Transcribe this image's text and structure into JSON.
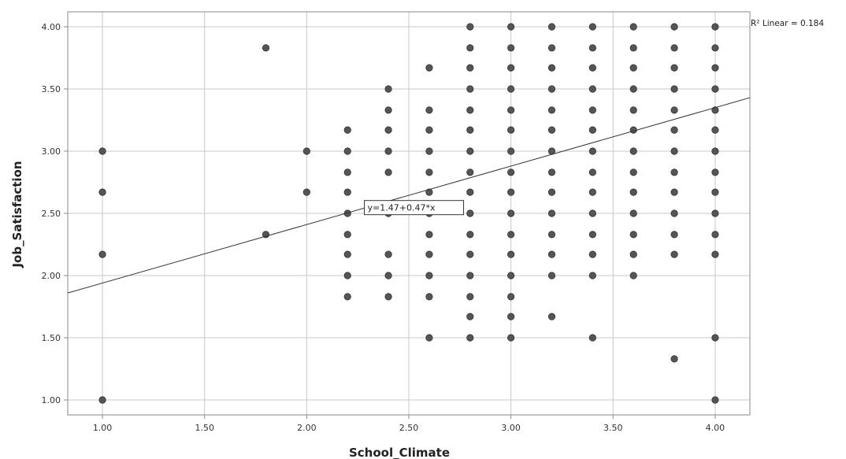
{
  "chart_data": {
    "type": "scatter",
    "title": "",
    "xlabel": "School_Climate",
    "ylabel": "Job_Satisfaction",
    "xlim": [
      0.83,
      4.17
    ],
    "ylim": [
      0.88,
      4.12
    ],
    "x_ticks": [
      "1.00",
      "1.50",
      "2.00",
      "2.50",
      "3.00",
      "3.50",
      "4.00"
    ],
    "y_ticks": [
      "1.00",
      "1.50",
      "2.00",
      "2.50",
      "3.00",
      "3.50",
      "4.00"
    ],
    "grid": true,
    "point_color": "#555555",
    "fit_line": {
      "intercept": 1.47,
      "slope": 0.47,
      "equation_label": "y=1.47+0.47*x",
      "r2_label": "R² Linear = 0.184"
    },
    "points": [
      [
        1.0,
        3.0
      ],
      [
        1.0,
        2.67
      ],
      [
        1.0,
        2.17
      ],
      [
        1.0,
        1.0
      ],
      [
        1.8,
        3.83
      ],
      [
        1.8,
        2.33
      ],
      [
        2.0,
        3.0
      ],
      [
        2.0,
        2.67
      ],
      [
        2.2,
        3.17
      ],
      [
        2.2,
        3.0
      ],
      [
        2.2,
        2.83
      ],
      [
        2.2,
        2.67
      ],
      [
        2.2,
        2.5
      ],
      [
        2.2,
        2.33
      ],
      [
        2.2,
        2.17
      ],
      [
        2.2,
        2.0
      ],
      [
        2.2,
        1.83
      ],
      [
        2.4,
        3.5
      ],
      [
        2.4,
        3.33
      ],
      [
        2.4,
        3.17
      ],
      [
        2.4,
        3.0
      ],
      [
        2.4,
        2.83
      ],
      [
        2.4,
        2.5
      ],
      [
        2.4,
        2.17
      ],
      [
        2.4,
        2.0
      ],
      [
        2.4,
        1.83
      ],
      [
        2.6,
        3.67
      ],
      [
        2.6,
        3.33
      ],
      [
        2.6,
        3.17
      ],
      [
        2.6,
        3.0
      ],
      [
        2.6,
        2.83
      ],
      [
        2.6,
        2.67
      ],
      [
        2.6,
        2.5
      ],
      [
        2.6,
        2.33
      ],
      [
        2.6,
        2.17
      ],
      [
        2.6,
        2.0
      ],
      [
        2.6,
        1.83
      ],
      [
        2.6,
        1.5
      ],
      [
        2.8,
        4.0
      ],
      [
        2.8,
        3.83
      ],
      [
        2.8,
        3.67
      ],
      [
        2.8,
        3.5
      ],
      [
        2.8,
        3.33
      ],
      [
        2.8,
        3.17
      ],
      [
        2.8,
        3.0
      ],
      [
        2.8,
        2.83
      ],
      [
        2.8,
        2.67
      ],
      [
        2.8,
        2.5
      ],
      [
        2.8,
        2.33
      ],
      [
        2.8,
        2.17
      ],
      [
        2.8,
        2.0
      ],
      [
        2.8,
        1.83
      ],
      [
        2.8,
        1.67
      ],
      [
        2.8,
        1.5
      ],
      [
        3.0,
        4.0
      ],
      [
        3.0,
        3.83
      ],
      [
        3.0,
        3.67
      ],
      [
        3.0,
        3.5
      ],
      [
        3.0,
        3.33
      ],
      [
        3.0,
        3.17
      ],
      [
        3.0,
        3.0
      ],
      [
        3.0,
        2.83
      ],
      [
        3.0,
        2.67
      ],
      [
        3.0,
        2.5
      ],
      [
        3.0,
        2.33
      ],
      [
        3.0,
        2.17
      ],
      [
        3.0,
        2.0
      ],
      [
        3.0,
        1.83
      ],
      [
        3.0,
        1.67
      ],
      [
        3.0,
        1.5
      ],
      [
        3.2,
        4.0
      ],
      [
        3.2,
        3.83
      ],
      [
        3.2,
        3.67
      ],
      [
        3.2,
        3.5
      ],
      [
        3.2,
        3.33
      ],
      [
        3.2,
        3.17
      ],
      [
        3.2,
        3.0
      ],
      [
        3.2,
        2.83
      ],
      [
        3.2,
        2.67
      ],
      [
        3.2,
        2.5
      ],
      [
        3.2,
        2.33
      ],
      [
        3.2,
        2.17
      ],
      [
        3.2,
        2.0
      ],
      [
        3.2,
        1.67
      ],
      [
        3.4,
        4.0
      ],
      [
        3.4,
        3.83
      ],
      [
        3.4,
        3.67
      ],
      [
        3.4,
        3.5
      ],
      [
        3.4,
        3.33
      ],
      [
        3.4,
        3.17
      ],
      [
        3.4,
        3.0
      ],
      [
        3.4,
        2.83
      ],
      [
        3.4,
        2.67
      ],
      [
        3.4,
        2.5
      ],
      [
        3.4,
        2.33
      ],
      [
        3.4,
        2.17
      ],
      [
        3.4,
        2.0
      ],
      [
        3.4,
        1.5
      ],
      [
        3.6,
        4.0
      ],
      [
        3.6,
        3.83
      ],
      [
        3.6,
        3.67
      ],
      [
        3.6,
        3.5
      ],
      [
        3.6,
        3.33
      ],
      [
        3.6,
        3.17
      ],
      [
        3.6,
        3.0
      ],
      [
        3.6,
        2.83
      ],
      [
        3.6,
        2.67
      ],
      [
        3.6,
        2.5
      ],
      [
        3.6,
        2.33
      ],
      [
        3.6,
        2.17
      ],
      [
        3.6,
        2.0
      ],
      [
        3.8,
        4.0
      ],
      [
        3.8,
        3.83
      ],
      [
        3.8,
        3.67
      ],
      [
        3.8,
        3.5
      ],
      [
        3.8,
        3.33
      ],
      [
        3.8,
        3.17
      ],
      [
        3.8,
        3.0
      ],
      [
        3.8,
        2.83
      ],
      [
        3.8,
        2.67
      ],
      [
        3.8,
        2.5
      ],
      [
        3.8,
        2.33
      ],
      [
        3.8,
        2.17
      ],
      [
        3.8,
        1.33
      ],
      [
        4.0,
        4.0
      ],
      [
        4.0,
        3.83
      ],
      [
        4.0,
        3.67
      ],
      [
        4.0,
        3.5
      ],
      [
        4.0,
        3.33
      ],
      [
        4.0,
        3.17
      ],
      [
        4.0,
        3.0
      ],
      [
        4.0,
        2.83
      ],
      [
        4.0,
        2.67
      ],
      [
        4.0,
        2.5
      ],
      [
        4.0,
        2.33
      ],
      [
        4.0,
        2.17
      ],
      [
        4.0,
        1.5
      ],
      [
        4.0,
        1.0
      ]
    ]
  }
}
